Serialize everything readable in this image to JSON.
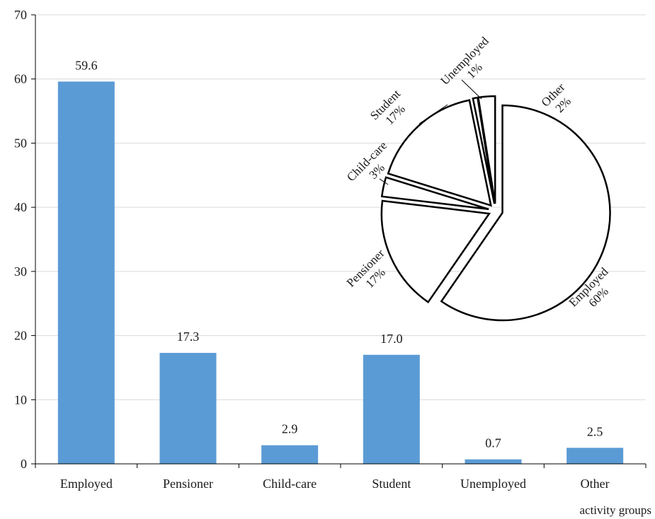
{
  "chart_data": [
    {
      "type": "bar",
      "categories": [
        "Employed",
        "Pensioner",
        "Child-care",
        "Student",
        "Unemployed",
        "Other"
      ],
      "values": [
        59.6,
        17.3,
        2.9,
        17.0,
        0.7,
        2.5
      ],
      "data_labels": [
        "59.6",
        "17.3",
        "2.9",
        "17.0",
        "0.7",
        "2.5"
      ],
      "xlabel": "activity groups",
      "ylabel": "",
      "ylim": [
        0,
        70
      ],
      "yticks": [
        "0",
        "10",
        "20",
        "30",
        "40",
        "50",
        "60",
        "70"
      ],
      "grid": true,
      "bar_color": "#5b9bd5"
    },
    {
      "type": "pie",
      "style": "exploded, outline only",
      "slices": [
        {
          "name": "Employed",
          "label": "60%",
          "value": 59.6
        },
        {
          "name": "Pensioner",
          "label": "17%",
          "value": 17.3
        },
        {
          "name": "Child-care",
          "label": "3%",
          "value": 2.9
        },
        {
          "name": "Student",
          "label": "17%",
          "value": 17.0
        },
        {
          "name": "Unemployed",
          "label": "1%",
          "value": 0.7
        },
        {
          "name": "Other",
          "label": "2%",
          "value": 2.5
        }
      ]
    }
  ]
}
